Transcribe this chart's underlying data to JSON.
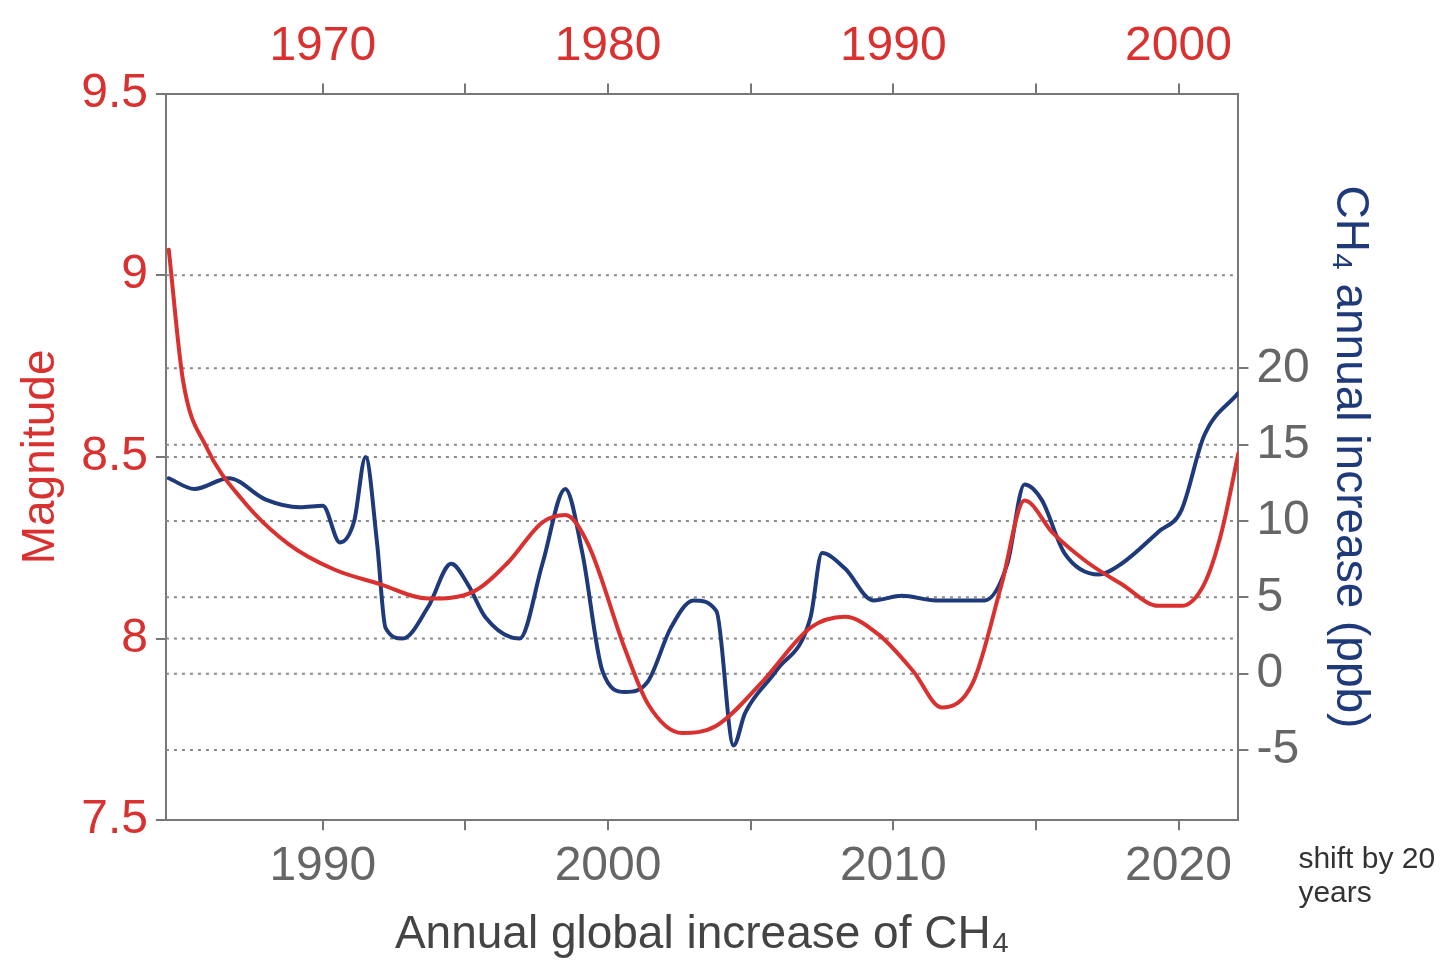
{
  "chart_data": {
    "type": "line",
    "xlabel": "Annual global increase of CH₄",
    "ylabel": "Magnitude",
    "y2label": "CH₄ annual increase (ppb)",
    "annotations": [
      "shift by 20 years"
    ],
    "xlim": [
      1984.5,
      2022.1
    ],
    "xticks": [
      1990,
      {
        "value": 1995,
        "label": null
      },
      2000,
      {
        "value": 2005,
        "label": null
      },
      2010,
      {
        "value": 2015,
        "label": null
      },
      2020
    ],
    "x2lim": [
      1964.5,
      2002.1
    ],
    "x2ticks": [
      1970,
      {
        "value": 1975,
        "label": null
      },
      1980,
      {
        "value": 1985,
        "label": null
      },
      1990,
      {
        "value": 1995,
        "label": null
      },
      2000
    ],
    "ylim": [
      7.5,
      9.5
    ],
    "yticks": [
      7.5,
      8,
      8.5,
      9,
      9.5
    ],
    "y2lim": [
      -9.6,
      38
    ],
    "y2ticks": [
      -5,
      0,
      5,
      10,
      15,
      20
    ],
    "grid": "y",
    "legend": false,
    "marker": "none",
    "line_style": "solid",
    "series": [
      {
        "color": "#d9312f",
        "axis": "y",
        "x": [
          1984.6,
          1985.1,
          1985.9,
          1987.2,
          1988.8,
          1990.4,
          1992.0,
          1993.7,
          1995.3,
          1996.5,
          1997.7,
          1998.5,
          1999.3,
          2000.6,
          2001.4,
          2002.6,
          2003.8,
          2005.4,
          2007.1,
          2008.3,
          2009.5,
          2010.7,
          2011.7,
          2012.8,
          2013.8,
          2014.6,
          2015.6,
          2016.8,
          2018.0,
          2019.3,
          2020.1,
          2020.9,
          2021.5,
          2022.1
        ],
        "values": [
          9.07,
          8.71,
          8.53,
          8.38,
          8.26,
          8.19,
          8.15,
          8.11,
          8.13,
          8.21,
          8.32,
          8.34,
          8.26,
          7.97,
          7.82,
          7.74,
          7.76,
          7.88,
          8.03,
          8.06,
          8.01,
          7.91,
          7.81,
          7.88,
          8.15,
          8.38,
          8.29,
          8.21,
          8.15,
          8.09,
          8.09,
          8.15,
          8.29,
          8.51
        ]
      },
      {
        "color": "#1f3a7a",
        "axis": "y2",
        "x": [
          1984.6,
          1985.5,
          1986.7,
          1988.0,
          1989.2,
          1990.0,
          1990.6,
          1991.1,
          1991.5,
          1991.9,
          1992.2,
          1992.8,
          1993.7,
          1994.5,
          1995.1,
          1995.7,
          1996.9,
          1997.7,
          1998.5,
          1999.1,
          1999.8,
          2000.6,
          2001.4,
          2002.2,
          2003.0,
          2003.8,
          2004.4,
          2004.8,
          2005.9,
          2007.1,
          2007.5,
          2008.3,
          2009.3,
          2010.3,
          2011.5,
          2013.2,
          2014.0,
          2014.6,
          2015.2,
          2016.0,
          2017.2,
          2018.0,
          2019.3,
          2020.1,
          2020.9,
          2022.1
        ],
        "values": [
          12.8,
          12.1,
          12.8,
          11.4,
          10.9,
          11.0,
          8.6,
          10.0,
          14.2,
          8.6,
          3.0,
          2.3,
          4.4,
          7.2,
          5.8,
          3.7,
          2.3,
          7.2,
          12.1,
          7.9,
          0.2,
          -1.2,
          -0.5,
          3.0,
          4.8,
          4.1,
          -4.7,
          -2.6,
          0.2,
          3.7,
          7.9,
          6.9,
          4.8,
          5.1,
          4.8,
          4.8,
          7.2,
          12.4,
          11.4,
          7.9,
          6.5,
          7.2,
          9.3,
          10.7,
          15.6,
          18.4
        ]
      }
    ]
  }
}
